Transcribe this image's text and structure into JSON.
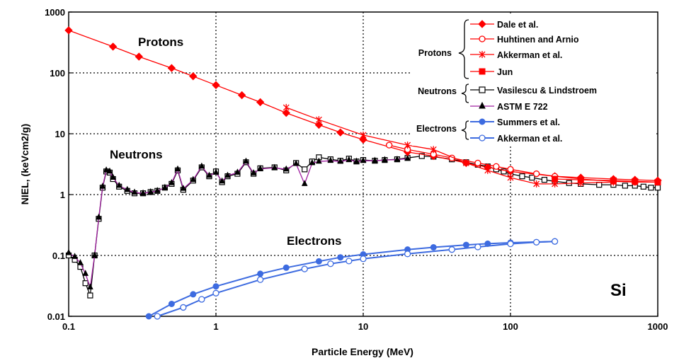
{
  "chart_data": {
    "type": "line",
    "title": "",
    "xlabel": "Particle Energy (MeV)",
    "ylabel": "NIEL, (keVcm2/g)",
    "x_scale": "log",
    "y_scale": "log",
    "xlim": [
      0.1,
      1000
    ],
    "ylim": [
      0.01,
      1000
    ],
    "x_ticks": [
      "0.1",
      "1",
      "10",
      "100",
      "1000"
    ],
    "y_ticks": [
      "0.01",
      "0.1",
      "1",
      "10",
      "100",
      "1000"
    ],
    "grid": "dotted-major",
    "legend_position": "top-right",
    "annotations": [
      "Protons",
      "Neutrons",
      "Electrons",
      "Si"
    ],
    "legend_groups": [
      "Protons",
      "Neutrons",
      "Electrons"
    ],
    "series": [
      {
        "name": "Dale et al.",
        "group": "Protons",
        "color": "#ff0000",
        "marker": "diamond-filled",
        "x": [
          0.1,
          0.2,
          0.3,
          0.5,
          0.7,
          1,
          1.5,
          2,
          3,
          5,
          7,
          10,
          20,
          30,
          50,
          70,
          100,
          200,
          300,
          500,
          700,
          1000
        ],
        "y": [
          500,
          270,
          185,
          120,
          88,
          63,
          43,
          33,
          22,
          14,
          10.5,
          8,
          5,
          4.3,
          3.3,
          2.8,
          2.4,
          2.0,
          1.9,
          1.8,
          1.75,
          1.7
        ]
      },
      {
        "name": "Huhtinen and Arnio",
        "group": "Protons",
        "color": "#ff0000",
        "marker": "circle-open",
        "x": [
          15,
          20,
          30,
          40,
          60,
          80,
          100,
          150,
          200,
          300,
          500,
          700,
          1000
        ],
        "y": [
          6.5,
          5.5,
          4.6,
          4.0,
          3.3,
          2.9,
          2.6,
          2.2,
          2.0,
          1.8,
          1.65,
          1.6,
          1.6
        ]
      },
      {
        "name": "Akkerman et al.",
        "group": "Protons",
        "color": "#ff0000",
        "marker": "x",
        "x": [
          3,
          5,
          10,
          20,
          30,
          50,
          70,
          100,
          150,
          200,
          300,
          500
        ],
        "y": [
          27,
          17,
          9.5,
          6.5,
          5.5,
          3.3,
          2.5,
          1.9,
          1.5,
          1.5,
          1.55,
          1.6
        ]
      },
      {
        "name": "Jun",
        "group": "Protons",
        "color": "#ff0000",
        "marker": "square-filled",
        "x": [
          200,
          300,
          500,
          700,
          1000
        ],
        "y": [
          1.8,
          1.75,
          1.7,
          1.65,
          1.6
        ]
      },
      {
        "name": "Vasilescu & Lindstroem",
        "group": "Neutrons",
        "color": "#000000",
        "marker": "square-open",
        "x": [
          0.1,
          0.11,
          0.12,
          0.13,
          0.14,
          0.15,
          0.16,
          0.17,
          0.18,
          0.19,
          0.2,
          0.22,
          0.25,
          0.28,
          0.32,
          0.36,
          0.4,
          0.45,
          0.5,
          0.55,
          0.6,
          0.7,
          0.8,
          0.9,
          1,
          1.1,
          1.2,
          1.4,
          1.6,
          1.8,
          2,
          2.5,
          3,
          3.5,
          4,
          4.5,
          5,
          6,
          7,
          8,
          9,
          10,
          12,
          14,
          17,
          20,
          25,
          30,
          40,
          50,
          60,
          70,
          80,
          90,
          100,
          120,
          140,
          170,
          200,
          250,
          300,
          400,
          500,
          600,
          700,
          800,
          900,
          1000
        ],
        "y": [
          0.1,
          0.085,
          0.065,
          0.035,
          0.022,
          0.1,
          0.4,
          1.3,
          2.4,
          2.3,
          1.8,
          1.35,
          1.15,
          1.05,
          1.05,
          1.1,
          1.15,
          1.3,
          1.5,
          2.5,
          1.2,
          1.7,
          2.8,
          2.0,
          2.4,
          1.6,
          2.0,
          2.2,
          3.4,
          2.2,
          2.7,
          2.8,
          2.5,
          3.3,
          2.6,
          3.5,
          4.1,
          3.8,
          3.6,
          3.9,
          3.5,
          3.7,
          3.6,
          3.7,
          3.8,
          4.0,
          4.3,
          4.2,
          3.8,
          3.4,
          3.1,
          2.9,
          2.6,
          2.4,
          2.2,
          2.0,
          1.9,
          1.75,
          1.65,
          1.55,
          1.5,
          1.45,
          1.45,
          1.4,
          1.4,
          1.35,
          1.3,
          1.3
        ]
      },
      {
        "name": "ASTM E 722",
        "group": "Neutrons",
        "color": "#000000",
        "line_color": "#a020a0",
        "marker": "triangle-filled",
        "x": [
          0.1,
          0.11,
          0.12,
          0.13,
          0.14,
          0.15,
          0.16,
          0.17,
          0.18,
          0.19,
          0.2,
          0.22,
          0.25,
          0.28,
          0.32,
          0.36,
          0.4,
          0.45,
          0.5,
          0.55,
          0.6,
          0.7,
          0.8,
          0.9,
          1,
          1.1,
          1.2,
          1.4,
          1.6,
          1.8,
          2,
          2.5,
          3,
          3.5,
          4,
          4.5,
          5,
          6,
          7,
          8,
          9,
          10,
          12,
          14,
          17,
          20
        ],
        "y": [
          0.11,
          0.095,
          0.075,
          0.05,
          0.03,
          0.1,
          0.42,
          1.35,
          2.5,
          2.4,
          1.9,
          1.4,
          1.2,
          1.08,
          1.05,
          1.1,
          1.15,
          1.3,
          1.55,
          2.6,
          1.25,
          1.75,
          2.9,
          2.05,
          2.3,
          1.65,
          2.05,
          2.3,
          3.5,
          2.25,
          2.65,
          2.75,
          2.6,
          3.2,
          1.5,
          3.3,
          3.5,
          3.6,
          3.5,
          3.7,
          3.5,
          3.6,
          3.6,
          3.7,
          3.75,
          3.9
        ]
      },
      {
        "name": "Summers et al.",
        "group": "Electrons",
        "color": "#3d6be0",
        "marker": "circle-filled",
        "x": [
          0.35,
          0.5,
          0.7,
          1,
          2,
          3,
          5,
          7,
          10,
          20,
          30,
          50,
          70,
          100,
          200
        ],
        "y": [
          0.01,
          0.016,
          0.023,
          0.031,
          0.05,
          0.063,
          0.08,
          0.093,
          0.104,
          0.125,
          0.136,
          0.149,
          0.156,
          0.162,
          0.17
        ]
      },
      {
        "name": "Akkerman et al.",
        "group": "Electrons",
        "color": "#3d6be0",
        "marker": "circle-open",
        "x": [
          0.4,
          0.6,
          0.8,
          1,
          2,
          4,
          6,
          8,
          10,
          20,
          40,
          60,
          100,
          150,
          200
        ],
        "y": [
          0.01,
          0.014,
          0.019,
          0.024,
          0.04,
          0.06,
          0.073,
          0.081,
          0.088,
          0.106,
          0.125,
          0.138,
          0.155,
          0.165,
          0.17
        ]
      }
    ]
  }
}
